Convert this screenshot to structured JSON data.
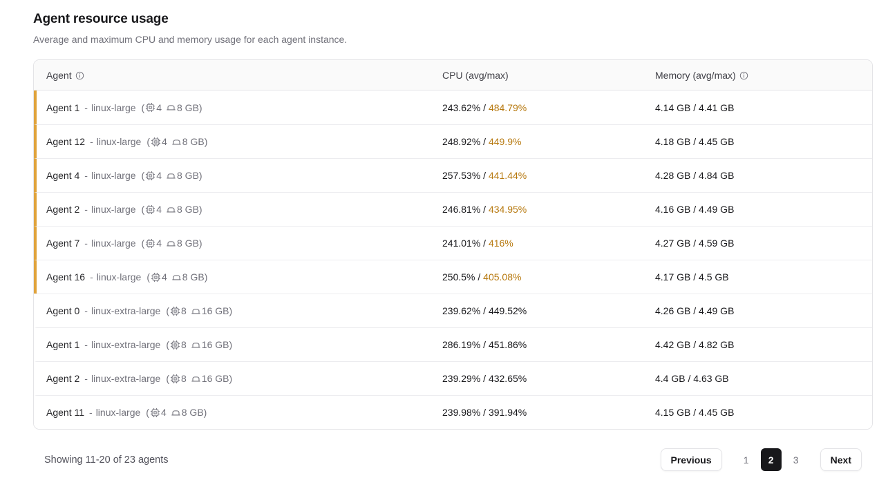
{
  "page": {
    "title": "Agent resource usage",
    "subtitle": "Average and maximum CPU and memory usage for each agent instance."
  },
  "table": {
    "columns": {
      "agent": "Agent",
      "cpu": "CPU (avg/max)",
      "memory": "Memory (avg/max)"
    },
    "dash": "-",
    "open_paren": "(",
    "close_paren": ")",
    "value_separator": "/",
    "rows": [
      {
        "name": "Agent 1",
        "machine": "linux-large",
        "cpus": "4",
        "ram": "8 GB",
        "cpu_avg": "243.62%",
        "cpu_max": "484.79%",
        "mem_avg": "4.14 GB",
        "mem_max": "4.41 GB",
        "highlight": true
      },
      {
        "name": "Agent 12",
        "machine": "linux-large",
        "cpus": "4",
        "ram": "8 GB",
        "cpu_avg": "248.92%",
        "cpu_max": "449.9%",
        "mem_avg": "4.18 GB",
        "mem_max": "4.45 GB",
        "highlight": true
      },
      {
        "name": "Agent 4",
        "machine": "linux-large",
        "cpus": "4",
        "ram": "8 GB",
        "cpu_avg": "257.53%",
        "cpu_max": "441.44%",
        "mem_avg": "4.28 GB",
        "mem_max": "4.84 GB",
        "highlight": true
      },
      {
        "name": "Agent 2",
        "machine": "linux-large",
        "cpus": "4",
        "ram": "8 GB",
        "cpu_avg": "246.81%",
        "cpu_max": "434.95%",
        "mem_avg": "4.16 GB",
        "mem_max": "4.49 GB",
        "highlight": true
      },
      {
        "name": "Agent 7",
        "machine": "linux-large",
        "cpus": "4",
        "ram": "8 GB",
        "cpu_avg": "241.01%",
        "cpu_max": "416%",
        "mem_avg": "4.27 GB",
        "mem_max": "4.59 GB",
        "highlight": true
      },
      {
        "name": "Agent 16",
        "machine": "linux-large",
        "cpus": "4",
        "ram": "8 GB",
        "cpu_avg": "250.5%",
        "cpu_max": "405.08%",
        "mem_avg": "4.17 GB",
        "mem_max": "4.5 GB",
        "highlight": true
      },
      {
        "name": "Agent 0",
        "machine": "linux-extra-large",
        "cpus": "8",
        "ram": "16 GB",
        "cpu_avg": "239.62%",
        "cpu_max": "449.52%",
        "mem_avg": "4.26 GB",
        "mem_max": "4.49 GB",
        "highlight": false
      },
      {
        "name": "Agent 1",
        "machine": "linux-extra-large",
        "cpus": "8",
        "ram": "16 GB",
        "cpu_avg": "286.19%",
        "cpu_max": "451.86%",
        "mem_avg": "4.42 GB",
        "mem_max": "4.82 GB",
        "highlight": false
      },
      {
        "name": "Agent 2",
        "machine": "linux-extra-large",
        "cpus": "8",
        "ram": "16 GB",
        "cpu_avg": "239.29%",
        "cpu_max": "432.65%",
        "mem_avg": "4.4 GB",
        "mem_max": "4.63 GB",
        "highlight": false
      },
      {
        "name": "Agent 11",
        "machine": "linux-large",
        "cpus": "4",
        "ram": "8 GB",
        "cpu_avg": "239.98%",
        "cpu_max": "391.94%",
        "mem_avg": "4.15 GB",
        "mem_max": "4.45 GB",
        "highlight": false
      }
    ]
  },
  "footer": {
    "summary": "Showing 11-20 of 23 agents",
    "pagination": {
      "previous": "Previous",
      "pages": [
        "1",
        "2",
        "3"
      ],
      "active_page": "2",
      "next": "Next"
    }
  },
  "colors": {
    "accent_bar": "#E0A33B",
    "cpu_max_warning_text": "#B7790F",
    "active_page_bg": "#18181B",
    "header_row_bg": "#FAFAFA",
    "table_border": "#E4E4E7"
  }
}
